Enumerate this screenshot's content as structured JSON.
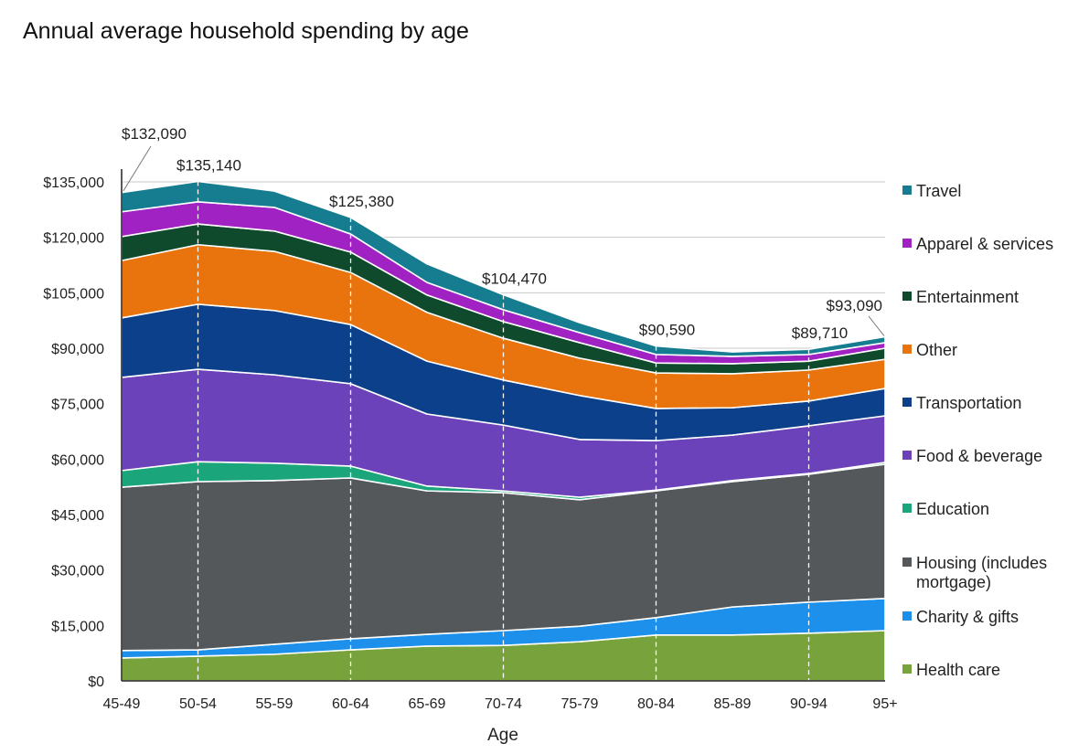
{
  "chart_data": {
    "type": "area",
    "stacked": true,
    "title": "Annual average household spending by age",
    "xlabel": "Age",
    "ylabel": "",
    "ylim": [
      0,
      135000
    ],
    "yticks": [
      0,
      15000,
      30000,
      45000,
      60000,
      75000,
      90000,
      105000,
      120000,
      135000
    ],
    "ytick_labels": [
      "$0",
      "$15,000",
      "$30,000",
      "$45,000",
      "$60,000",
      "$75,000",
      "$90,000",
      "$105,000",
      "$120,000",
      "$135,000"
    ],
    "categories": [
      "45-49",
      "50-54",
      "55-59",
      "60-64",
      "65-69",
      "70-74",
      "75-79",
      "80-84",
      "85-89",
      "90-94",
      "95+"
    ],
    "grid": "horizontal",
    "legend": "right",
    "series": [
      {
        "name": "Health care",
        "color": "#78a23c",
        "values": [
          6200,
          6700,
          7200,
          8400,
          9400,
          9600,
          10600,
          12400,
          12400,
          12900,
          13600
        ]
      },
      {
        "name": "Charity & gifts",
        "color": "#1c90ea",
        "values": [
          2000,
          1700,
          2700,
          3000,
          3200,
          4000,
          4200,
          4700,
          7600,
          8400,
          8700
        ]
      },
      {
        "name": "Housing (includes mortgage)",
        "color": "#55585b",
        "values": [
          44200,
          45500,
          44300,
          43500,
          38800,
          37300,
          34200,
          34300,
          33900,
          34600,
          36300
        ]
      },
      {
        "name": "Education",
        "color": "#1ba57b",
        "values": [
          4500,
          5400,
          4700,
          3200,
          1300,
          500,
          700,
          200,
          300,
          200,
          500
        ]
      },
      {
        "name": "Food & beverage",
        "color": "#6b42b9",
        "values": [
          25200,
          25000,
          23900,
          22300,
          19500,
          17800,
          15600,
          13400,
          12300,
          12900,
          12600
        ]
      },
      {
        "name": "Transportation",
        "color": "#0d408b",
        "values": [
          16100,
          17600,
          17400,
          16000,
          14300,
          12200,
          11900,
          8700,
          7400,
          6700,
          7400
        ]
      },
      {
        "name": "Other",
        "color": "#e9740d",
        "values": [
          15500,
          16100,
          16000,
          14100,
          13200,
          11300,
          10100,
          9600,
          9200,
          8400,
          7900
        ]
      },
      {
        "name": "Entertainment",
        "color": "#0f4a2d",
        "values": [
          6500,
          5600,
          5500,
          5500,
          4700,
          4500,
          4200,
          2700,
          2700,
          2400,
          3000
        ]
      },
      {
        "name": "Apparel & services",
        "color": "#a122c2",
        "values": [
          6700,
          6000,
          6400,
          4900,
          3400,
          3200,
          2700,
          2300,
          2000,
          1800,
          1500
        ]
      },
      {
        "name": "Travel",
        "color": "#157d8f",
        "values": [
          5190,
          5540,
          4400,
          4480,
          5000,
          4070,
          2700,
          2290,
          1200,
          1410,
          1590
        ]
      }
    ],
    "annotations": [
      {
        "category": "45-49",
        "label": "$132,090"
      },
      {
        "category": "50-54",
        "label": "$135,140"
      },
      {
        "category": "60-64",
        "label": "$125,380"
      },
      {
        "category": "70-74",
        "label": "$104,470"
      },
      {
        "category": "80-84",
        "label": "$90,590"
      },
      {
        "category": "90-94",
        "label": "$89,710"
      },
      {
        "category": "95+",
        "label": "$93,090"
      }
    ]
  }
}
